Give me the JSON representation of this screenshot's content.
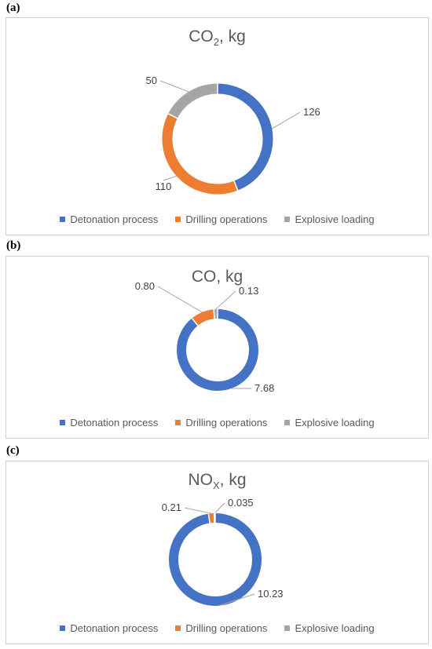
{
  "panels": [
    {
      "tag": "(a)",
      "title_main": "CO",
      "title_sub": "2",
      "title_tail": ", kg"
    },
    {
      "tag": "(b)",
      "title_main": "CO, kg",
      "title_sub": "",
      "title_tail": ""
    },
    {
      "tag": "(c)",
      "title_main": "NO",
      "title_sub": "X",
      "title_tail": ", kg"
    }
  ],
  "legend": [
    "Detonation process",
    "Drilling operations",
    "Explosive loading"
  ],
  "colors": {
    "detonation": "#4472C4",
    "drilling": "#ED7D31",
    "loading": "#A5A5A5"
  },
  "chart_data": [
    {
      "type": "pie",
      "title": "CO2, kg",
      "categories": [
        "Detonation process",
        "Drilling operations",
        "Explosive loading"
      ],
      "values": [
        126,
        110,
        50
      ],
      "labels": [
        "126",
        "110",
        "50"
      ]
    },
    {
      "type": "pie",
      "title": "CO, kg",
      "categories": [
        "Detonation process",
        "Drilling operations",
        "Explosive loading"
      ],
      "values": [
        7.68,
        0.8,
        0.13
      ],
      "labels": [
        "7.68",
        "0.80",
        "0.13"
      ]
    },
    {
      "type": "pie",
      "title": "NOX, kg",
      "categories": [
        "Detonation process",
        "Drilling operations",
        "Explosive loading"
      ],
      "values": [
        10.23,
        0.21,
        0.035
      ],
      "labels": [
        "10.23",
        "0.21",
        "0.035"
      ]
    }
  ]
}
